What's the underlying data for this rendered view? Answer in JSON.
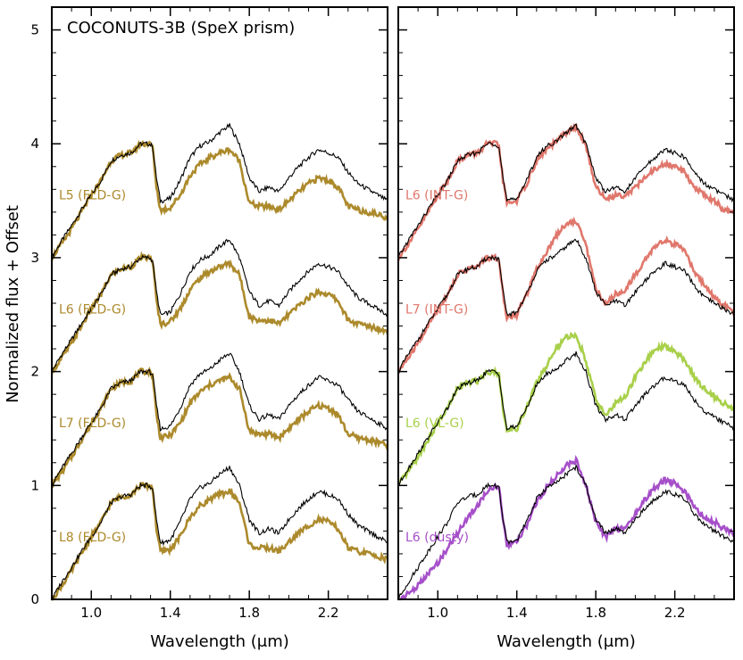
{
  "figure": {
    "ylabel": "Normalized flux + Offset",
    "xlabel": "Wavelength (μm)"
  },
  "chart_data": [
    {
      "type": "line",
      "title": "COCONUTS-3B (SpeX prism)",
      "xlabel": "Wavelength (μm)",
      "ylabel": "Normalized flux + Offset",
      "xlim": [
        0.8,
        2.5
      ],
      "ylim": [
        0,
        5.2
      ],
      "x_ticks": [
        1.0,
        1.4,
        1.8,
        2.2
      ],
      "x_tick_labels": [
        "1.0",
        "1.4",
        "1.8",
        "2.2"
      ],
      "y_ticks": [
        0,
        1,
        2,
        3,
        4,
        5
      ],
      "y_tick_labels": [
        "0",
        "1",
        "2",
        "3",
        "4",
        "5"
      ],
      "grid": false,
      "offsets": [
        3.0,
        2.0,
        1.0,
        0.0
      ],
      "series": [
        {
          "name": "L5 (FLD-G)",
          "color": "#ac8a2c",
          "offset": 3.0,
          "template": "fldg"
        },
        {
          "name": "L6 (FLD-G)",
          "color": "#ac8a2c",
          "offset": 2.0,
          "template": "fldg"
        },
        {
          "name": "L7 (FLD-G)",
          "color": "#ac8a2c",
          "offset": 1.0,
          "template": "fldg"
        },
        {
          "name": "L8 (FLD-G)",
          "color": "#ac8a2c",
          "offset": 0.0,
          "template": "fldg"
        }
      ]
    },
    {
      "type": "line",
      "xlabel": "Wavelength (μm)",
      "xlim": [
        0.8,
        2.5
      ],
      "ylim": [
        0,
        5.2
      ],
      "x_ticks": [
        1.0,
        1.4,
        1.8,
        2.2
      ],
      "x_tick_labels": [
        "1.0",
        "1.4",
        "1.8",
        "2.2"
      ],
      "y_ticks": [
        0,
        1,
        2,
        3,
        4,
        5
      ],
      "grid": false,
      "offsets": [
        3.0,
        2.0,
        1.0,
        0.0
      ],
      "series": [
        {
          "name": "L6 (INT-G)",
          "color": "#e0776c",
          "offset": 3.0,
          "template": "intg6"
        },
        {
          "name": "L7 (INT-G)",
          "color": "#e0776c",
          "offset": 2.0,
          "template": "intg7"
        },
        {
          "name": "L6 (VL-G)",
          "color": "#a8d04a",
          "offset": 1.0,
          "template": "vlg"
        },
        {
          "name": "L6 (dusty)",
          "color": "#a64fc9",
          "offset": 0.0,
          "template": "dusty"
        }
      ]
    }
  ],
  "spectra": {
    "wavelength": [
      0.8,
      0.85,
      0.9,
      0.95,
      1.0,
      1.05,
      1.1,
      1.15,
      1.2,
      1.25,
      1.29,
      1.31,
      1.33,
      1.35,
      1.36,
      1.4,
      1.45,
      1.5,
      1.55,
      1.6,
      1.65,
      1.7,
      1.75,
      1.8,
      1.85,
      1.9,
      1.95,
      2.0,
      2.05,
      2.1,
      2.15,
      2.2,
      2.25,
      2.3,
      2.35,
      2.4,
      2.45,
      2.5
    ],
    "coconuts_3b": [
      0.0,
      0.15,
      0.28,
      0.42,
      0.55,
      0.68,
      0.85,
      0.9,
      0.92,
      1.0,
      1.0,
      0.98,
      0.7,
      0.5,
      0.5,
      0.52,
      0.68,
      0.88,
      0.98,
      1.02,
      1.1,
      1.16,
      1.0,
      0.7,
      0.58,
      0.62,
      0.58,
      0.7,
      0.8,
      0.88,
      0.95,
      0.92,
      0.88,
      0.75,
      0.65,
      0.6,
      0.55,
      0.5
    ],
    "fldg": [
      0.0,
      0.12,
      0.25,
      0.4,
      0.55,
      0.68,
      0.85,
      0.9,
      0.92,
      1.0,
      1.0,
      0.98,
      0.62,
      0.42,
      0.42,
      0.44,
      0.55,
      0.72,
      0.82,
      0.88,
      0.92,
      0.95,
      0.85,
      0.48,
      0.45,
      0.45,
      0.42,
      0.5,
      0.58,
      0.65,
      0.7,
      0.68,
      0.62,
      0.45,
      0.42,
      0.4,
      0.38,
      0.35
    ],
    "intg6": [
      0.0,
      0.12,
      0.25,
      0.4,
      0.55,
      0.68,
      0.85,
      0.9,
      0.92,
      1.0,
      1.0,
      0.98,
      0.68,
      0.48,
      0.48,
      0.5,
      0.65,
      0.85,
      0.95,
      1.02,
      1.1,
      1.15,
      0.98,
      0.62,
      0.52,
      0.55,
      0.55,
      0.62,
      0.7,
      0.78,
      0.82,
      0.8,
      0.75,
      0.62,
      0.55,
      0.5,
      0.42,
      0.38
    ],
    "intg7": [
      0.0,
      0.12,
      0.25,
      0.4,
      0.55,
      0.68,
      0.85,
      0.9,
      0.92,
      1.0,
      1.0,
      0.98,
      0.68,
      0.48,
      0.48,
      0.5,
      0.68,
      0.9,
      1.05,
      1.2,
      1.3,
      1.32,
      1.12,
      0.72,
      0.6,
      0.68,
      0.72,
      0.85,
      0.98,
      1.1,
      1.15,
      1.12,
      1.05,
      0.88,
      0.75,
      0.65,
      0.58,
      0.52
    ],
    "vlg": [
      0.0,
      0.12,
      0.25,
      0.4,
      0.55,
      0.68,
      0.85,
      0.9,
      0.92,
      1.0,
      1.0,
      0.98,
      0.68,
      0.48,
      0.48,
      0.5,
      0.68,
      0.9,
      1.05,
      1.2,
      1.3,
      1.32,
      1.1,
      0.75,
      0.62,
      0.72,
      0.78,
      0.95,
      1.08,
      1.2,
      1.22,
      1.18,
      1.1,
      0.95,
      0.85,
      0.78,
      0.72,
      0.68
    ],
    "dusty": [
      0.0,
      0.05,
      0.12,
      0.22,
      0.32,
      0.45,
      0.58,
      0.72,
      0.82,
      0.95,
      1.0,
      0.98,
      0.68,
      0.48,
      0.48,
      0.5,
      0.65,
      0.85,
      0.98,
      1.08,
      1.18,
      1.22,
      1.0,
      0.68,
      0.55,
      0.62,
      0.62,
      0.75,
      0.88,
      0.98,
      1.05,
      1.02,
      0.95,
      0.8,
      0.72,
      0.68,
      0.62,
      0.58
    ]
  }
}
